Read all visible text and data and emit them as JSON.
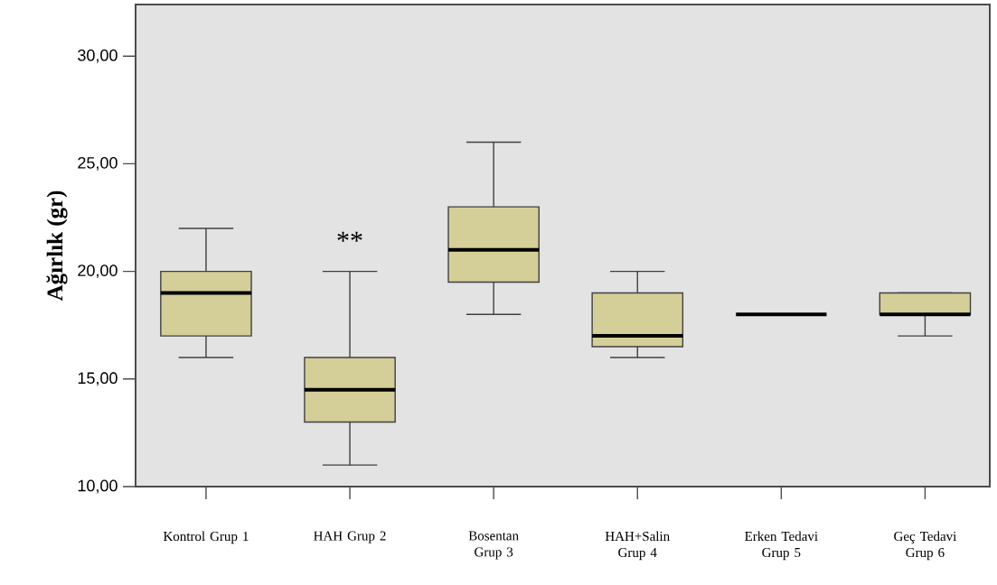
{
  "chart_data": {
    "type": "box",
    "ylabel": "Ağırlık (gr)",
    "categories": [
      "Kontrol Grup 1",
      "HAH Grup 2",
      "Bosentan Grup 3",
      "HAH+Salin Grup 4",
      "Erken Tedavi Grup 5",
      "Geç Tedavi Grup 6"
    ],
    "series": [
      {
        "color": "#d4cf98",
        "boxes": [
          {
            "low": 16,
            "q1": 17,
            "median": 19,
            "q3": 20,
            "high": 22
          },
          {
            "low": 11,
            "q1": 13,
            "median": 14.5,
            "q3": 16,
            "high": 20
          },
          {
            "low": 18,
            "q1": 19.5,
            "median": 21,
            "q3": 23,
            "high": 26
          },
          {
            "low": 16,
            "q1": 16.5,
            "median": 17,
            "q3": 19,
            "high": 20
          },
          {
            "low": 18,
            "q1": 18,
            "median": 18,
            "q3": 18,
            "high": 18
          },
          {
            "low": 17,
            "q1": 18,
            "median": 18,
            "q3": 19,
            "high": 19
          }
        ]
      }
    ],
    "ylim": [
      10,
      32.4
    ],
    "yticks": [
      {
        "value": 10,
        "label": "10,00"
      },
      {
        "value": 15,
        "label": "15,00"
      },
      {
        "value": 20,
        "label": "20,00"
      },
      {
        "value": 25,
        "label": "25,00"
      },
      {
        "value": 30,
        "label": "30,00"
      }
    ],
    "annotations": [
      "**"
    ]
  }
}
